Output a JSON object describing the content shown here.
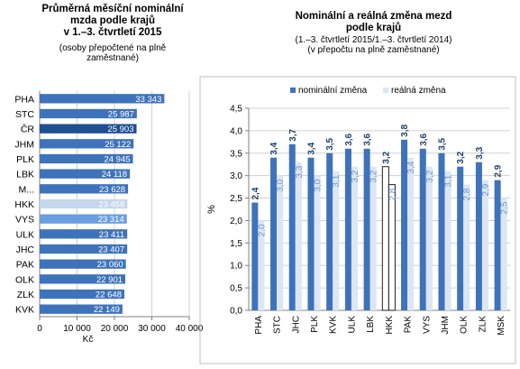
{
  "chart_data": [
    {
      "type": "bar",
      "orientation": "horizontal",
      "title": "Průměrná měsíční nominální mzda podle krajů v 1.–3. čtvrtletí  2015",
      "title_lines": [
        "Průměrná měsíční nominální",
        "mzda podle krajů",
        "v 1.–3. čtvrtletí  2015"
      ],
      "subtitle_lines": [
        "(osoby přepočtené na plně",
        "zaměstnané)"
      ],
      "xlabel": "Kč",
      "xlim": [
        0,
        40000
      ],
      "xticks": [
        0,
        10000,
        20000,
        30000,
        40000
      ],
      "xtick_labels": [
        "0",
        "10 000",
        "20 000",
        "30 000",
        "40 000"
      ],
      "categories": [
        "PHA",
        "STC",
        "ČR",
        "JHM",
        "PLK",
        "LBK",
        "M...",
        "HKK",
        "VYS",
        "ULK",
        "JHC",
        "PAK",
        "OLK",
        "ZLK",
        "KVK"
      ],
      "values": [
        33343,
        25987,
        25903,
        25122,
        24945,
        24118,
        23628,
        23458,
        23314,
        23411,
        23407,
        23060,
        22901,
        22648,
        22149
      ],
      "value_labels": [
        "33 343",
        "25 987",
        "25 903",
        "25 122",
        "24 945",
        "24 118",
        "23 628",
        "23 458",
        "23 314",
        "23 411",
        "23 407",
        "23 060",
        "22 901",
        "22 648",
        "22 149"
      ],
      "bar_colors": [
        "#3e73bb",
        "#3e73bb",
        "#1f4f91",
        "#3e73bb",
        "#3e73bb",
        "#3e73bb",
        "#3e73bb",
        "#c5d7ee",
        "#6a9ede",
        "#3e73bb",
        "#3e73bb",
        "#3e73bb",
        "#3e73bb",
        "#3e73bb",
        "#3e73bb"
      ],
      "grid": true
    },
    {
      "type": "bar",
      "title": "Nominální a reálná  změna mezd podle krajů",
      "title_lines": [
        "Nominální a reálná  změna mezd",
        "podle krajů"
      ],
      "subtitle_lines": [
        "(1.–3. čtvrtletí 2015/1.–3. čtvrtletí 2014)",
        "(v přepočtu na plně zaměstnané)"
      ],
      "ylabel": "%",
      "ylim": [
        0,
        4.5
      ],
      "yticks": [
        "0,0",
        "0,5",
        "1,0",
        "1,5",
        "2,0",
        "2,5",
        "3,0",
        "3,5",
        "4,0",
        "4,5"
      ],
      "legend_position": "top",
      "categories": [
        "PHA",
        "STC",
        "JHC",
        "PLK",
        "KVK",
        "ULK",
        "LBK",
        "HKK",
        "PAK",
        "VYS",
        "JHM",
        "OLK",
        "ZLK",
        "MSK"
      ],
      "series": [
        {
          "name": "nominální změna",
          "color": "#3e73bb",
          "values": [
            2.4,
            3.4,
            3.7,
            3.4,
            3.5,
            3.6,
            3.6,
            3.2,
            3.8,
            3.6,
            3.5,
            3.2,
            3.3,
            2.9
          ],
          "labels": [
            "2,4",
            "3,4",
            "3,7",
            "3,4",
            "3,5",
            "3,6",
            "3,6",
            "3,2",
            "3,8",
            "3,6",
            "3,5",
            "3,2",
            "3,3",
            "2,9"
          ]
        },
        {
          "name": "reálná změna",
          "color": "#dce6f4",
          "values": [
            2.0,
            3.0,
            3.3,
            3.0,
            3.1,
            3.2,
            3.2,
            2.8,
            3.4,
            3.2,
            3.1,
            2.8,
            2.9,
            2.5
          ],
          "labels": [
            "2,0",
            "3,0",
            "3,3",
            "3,0",
            "3,1",
            "3,2",
            "3,2",
            "2,8",
            "3,4",
            "3,2",
            "3,1",
            "2,8",
            "2,9",
            "2,5"
          ]
        }
      ],
      "highlight_category": "HKK",
      "grid": true
    }
  ]
}
